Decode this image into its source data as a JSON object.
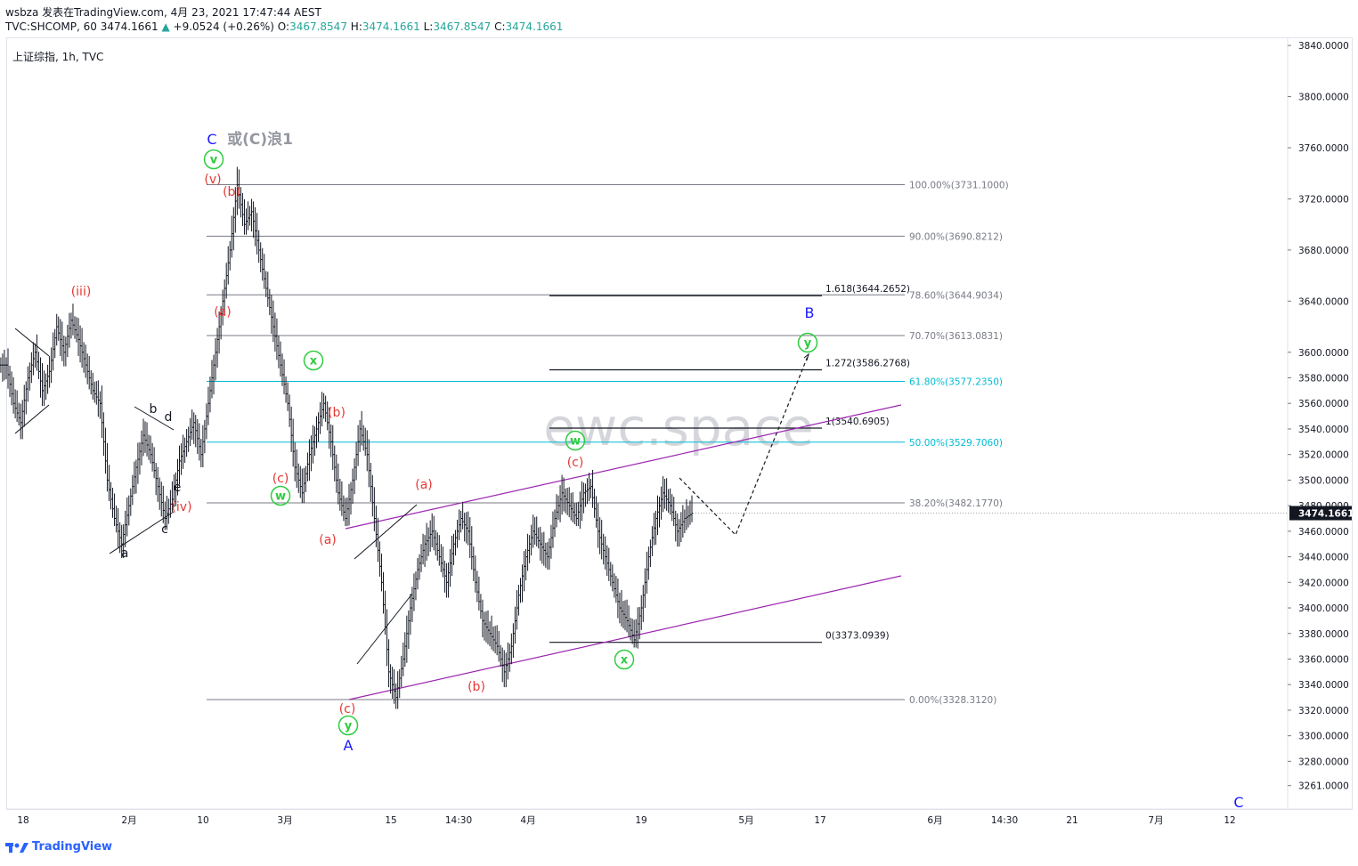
{
  "header": {
    "line1": "wsbza 发表在TradingView.com, 4月 23, 2021 17:47:44 AEST",
    "symbol": "TVC:SHCOMP, 60",
    "last": "3474.1661",
    "change": "+9.0524 (+0.26%)",
    "o_label": "O:",
    "o_val": "3467.8547",
    "h_label": "H:",
    "h_val": "3474.1661",
    "l_label": "L:",
    "l_val": "3467.8547",
    "c_label": "C:",
    "c_val": "3474.1661"
  },
  "legend": "上证综指, 1h, TVC",
  "watermark": "ewc.space",
  "footer": {
    "brand": "TradingView"
  },
  "colors": {
    "grid": "#e0e3eb",
    "fib_gray": "#787b86",
    "fib_teal": "#00bcd4",
    "channel": "#9c27b0",
    "wave_red": "#e53935",
    "wave_green": "#2ecc40",
    "wave_blue": "#1a1aff",
    "candle": "#131722",
    "last_price_bg": "#131722"
  },
  "chart_data": {
    "type": "candlestick",
    "title": "上证综指, 1h, TVC",
    "ylim": [
      3240,
      3860
    ],
    "y_ticks": [
      3840.0,
      3800.0,
      3760.0,
      3720.0,
      3680.0,
      3640.0,
      3600.0,
      3580.0,
      3560.0,
      3540.0,
      3520.0,
      3500.0,
      3480.0,
      3460.0,
      3440.0,
      3420.0,
      3400.0,
      3380.0,
      3360.0,
      3340.0,
      3320.0,
      3300.0,
      3280.0,
      3261.0
    ],
    "y_tick_labels": [
      "3840.0000",
      "3800.0000",
      "3760.0000",
      "3720.0000",
      "3680.0000",
      "3640.0000",
      "3600.0000",
      "3580.0000",
      "3560.0000",
      "3540.0000",
      "3520.0000",
      "3500.0000",
      "3480.0000",
      "3460.0000",
      "3440.0000",
      "3420.0000",
      "3400.0000",
      "3380.0000",
      "3360.0000",
      "3340.0000",
      "3320.0000",
      "3300.0000",
      "3280.0000",
      "3261.0000"
    ],
    "last_price": "3474.1661",
    "x_tick_labels": [
      "18",
      "2月",
      "10",
      "3月",
      "15",
      "14:30",
      "4月",
      "19",
      "5月",
      "17",
      "6月",
      "14:30",
      "21",
      "7月",
      "12"
    ],
    "price_path": [
      3590,
      3560,
      3545,
      3580,
      3600,
      3570,
      3585,
      3620,
      3600,
      3625,
      3610,
      3590,
      3570,
      3560,
      3500,
      3470,
      3450,
      3480,
      3510,
      3535,
      3520,
      3495,
      3470,
      3485,
      3515,
      3530,
      3545,
      3520,
      3560,
      3600,
      3640,
      3680,
      3731,
      3700,
      3710,
      3680,
      3650,
      3620,
      3590,
      3560,
      3510,
      3490,
      3520,
      3540,
      3560,
      3530,
      3490,
      3470,
      3500,
      3540,
      3520,
      3470,
      3420,
      3350,
      3330,
      3360,
      3400,
      3430,
      3450,
      3460,
      3440,
      3420,
      3450,
      3470,
      3460,
      3420,
      3390,
      3380,
      3370,
      3350,
      3370,
      3410,
      3440,
      3460,
      3450,
      3440,
      3470,
      3490,
      3480,
      3470,
      3490,
      3495,
      3460,
      3440,
      3420,
      3400,
      3390,
      3375,
      3400,
      3440,
      3470,
      3490,
      3480,
      3460,
      3470,
      3474
    ],
    "fib_levels": [
      {
        "label": "100.00%(3731.1000)",
        "value": 3731.1,
        "color": "gray"
      },
      {
        "label": "90.00%(3690.8212)",
        "value": 3690.8212,
        "color": "gray"
      },
      {
        "label": "78.60%(3644.9034)",
        "value": 3644.9034,
        "color": "gray"
      },
      {
        "label": "70.70%(3613.0831)",
        "value": 3613.0831,
        "color": "gray"
      },
      {
        "label": "61.80%(3577.2350)",
        "value": 3577.235,
        "color": "teal"
      },
      {
        "label": "50.00%(3529.7060)",
        "value": 3529.706,
        "color": "teal"
      },
      {
        "label": "38.20%(3482.1770)",
        "value": 3482.177,
        "color": "gray"
      },
      {
        "label": "0.00%(3328.3120)",
        "value": 3328.312,
        "color": "gray"
      }
    ],
    "ext_levels": [
      {
        "label": "1.618(3644.2652)",
        "value": 3644.2652
      },
      {
        "label": "1.272(3586.2768)",
        "value": 3586.2768
      },
      {
        "label": "1(3540.6905)",
        "value": 3540.6905
      },
      {
        "label": "0(3373.0939)",
        "value": 3373.0939
      }
    ],
    "wave_labels": [
      {
        "text": "C",
        "color": "blue"
      },
      {
        "text": "或(C)浪1",
        "color": "gray"
      },
      {
        "text": "v",
        "color": "green",
        "circle": true
      },
      {
        "text": "(v)",
        "color": "red"
      },
      {
        "text": "(b)",
        "color": "red"
      },
      {
        "text": "(a)",
        "color": "red"
      },
      {
        "text": "(iii)",
        "color": "red"
      },
      {
        "text": "b",
        "color": "black"
      },
      {
        "text": "d",
        "color": "black"
      },
      {
        "text": "e",
        "color": "black"
      },
      {
        "text": "(iv)",
        "color": "red"
      },
      {
        "text": "c",
        "color": "black"
      },
      {
        "text": "a",
        "color": "black"
      },
      {
        "text": "x",
        "color": "green",
        "circle": true
      },
      {
        "text": "(c)",
        "color": "red"
      },
      {
        "text": "w",
        "color": "green",
        "circle": true
      },
      {
        "text": "(b)",
        "color": "red"
      },
      {
        "text": "(a)",
        "color": "red"
      },
      {
        "text": "(a)",
        "color": "red"
      },
      {
        "text": "(c)",
        "color": "red"
      },
      {
        "text": "y",
        "color": "green",
        "circle": true
      },
      {
        "text": "A",
        "color": "blue"
      },
      {
        "text": "(b)",
        "color": "red"
      },
      {
        "text": "w",
        "color": "green",
        "circle": true
      },
      {
        "text": "(c)",
        "color": "red"
      },
      {
        "text": "x",
        "color": "green",
        "circle": true
      },
      {
        "text": "B",
        "color": "blue"
      },
      {
        "text": "y",
        "color": "green",
        "circle": true
      },
      {
        "text": "C",
        "color": "blue"
      }
    ]
  }
}
